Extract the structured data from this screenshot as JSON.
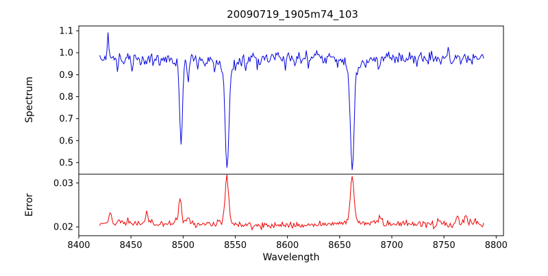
{
  "title": "20090719_1905m74_103",
  "axes": {
    "xlabel": "Wavelength",
    "ylabel_spectrum": "Spectrum",
    "ylabel_error": "Error"
  },
  "colors": {
    "spectrum_line": "#0000dd",
    "error_line": "#ee0000",
    "axis": "#000000",
    "background": "#ffffff"
  },
  "chart_data": {
    "type": "line",
    "title": "20090719_1905m74_103",
    "xlabel": "Wavelength",
    "x_range": [
      8400,
      8807
    ],
    "x_data_range": [
      8420,
      8788
    ],
    "x_step": 1,
    "x_ticks": [
      8400,
      8450,
      8500,
      8550,
      8600,
      8650,
      8700,
      8750,
      8800
    ],
    "grid": false,
    "legend": false,
    "noise_seed": 1337,
    "panels": [
      {
        "name": "spectrum",
        "ylabel": "Spectrum",
        "color": "#0000dd",
        "ylim": [
          0.447,
          1.122
        ],
        "y_ticks": [
          0.5,
          0.6,
          0.7,
          0.8,
          0.9,
          1.0,
          1.1
        ],
        "tick_decimals": 1,
        "continuum": 0.98,
        "noise_sigma": 0.013,
        "absorption_lines": [
          {
            "center": 8498,
            "depth": 0.4,
            "core_sigma": 1.3,
            "wing_scale": 3.0,
            "wing_frac": 0.15,
            "min_value": 0.58
          },
          {
            "center": 8542,
            "depth": 0.52,
            "core_sigma": 1.6,
            "wing_scale": 4.5,
            "wing_frac": 0.22,
            "min_value": 0.46
          },
          {
            "center": 8662,
            "depth": 0.52,
            "core_sigma": 1.6,
            "wing_scale": 4.5,
            "wing_frac": 0.22,
            "min_value": 0.46
          }
        ],
        "minor_dips": [
          {
            "center": 8437,
            "depth": 0.035,
            "sigma": 0.9
          },
          {
            "center": 8444,
            "depth": 0.03,
            "sigma": 0.8
          },
          {
            "center": 8451,
            "depth": 0.05,
            "sigma": 0.9
          },
          {
            "center": 8459,
            "depth": 0.03,
            "sigma": 0.8
          },
          {
            "center": 8464,
            "depth": 0.035,
            "sigma": 0.9
          },
          {
            "center": 8471,
            "depth": 0.03,
            "sigma": 0.8
          },
          {
            "center": 8478,
            "depth": 0.025,
            "sigma": 0.8
          },
          {
            "center": 8490,
            "depth": 0.03,
            "sigma": 0.8
          },
          {
            "center": 8505,
            "depth": 0.095,
            "sigma": 1.0
          },
          {
            "center": 8514,
            "depth": 0.04,
            "sigma": 0.9
          },
          {
            "center": 8521,
            "depth": 0.035,
            "sigma": 0.8
          },
          {
            "center": 8530,
            "depth": 0.045,
            "sigma": 0.9
          },
          {
            "center": 8560,
            "depth": 0.03,
            "sigma": 0.8
          },
          {
            "center": 8571,
            "depth": 0.025,
            "sigma": 0.8
          },
          {
            "center": 8583,
            "depth": 0.035,
            "sigma": 0.9
          },
          {
            "center": 8598,
            "depth": 0.045,
            "sigma": 0.9
          },
          {
            "center": 8607,
            "depth": 0.03,
            "sigma": 0.8
          },
          {
            "center": 8620,
            "depth": 0.035,
            "sigma": 0.8
          },
          {
            "center": 8634,
            "depth": 0.03,
            "sigma": 0.8
          },
          {
            "center": 8648,
            "depth": 0.035,
            "sigma": 0.9
          },
          {
            "center": 8674,
            "depth": 0.03,
            "sigma": 0.8
          },
          {
            "center": 8688,
            "depth": 0.05,
            "sigma": 0.9
          },
          {
            "center": 8699,
            "depth": 0.03,
            "sigma": 0.8
          },
          {
            "center": 8712,
            "depth": 0.035,
            "sigma": 0.8
          },
          {
            "center": 8724,
            "depth": 0.03,
            "sigma": 0.8
          },
          {
            "center": 8735,
            "depth": 0.035,
            "sigma": 0.9
          },
          {
            "center": 8747,
            "depth": 0.03,
            "sigma": 0.8
          },
          {
            "center": 8757,
            "depth": 0.04,
            "sigma": 0.9
          },
          {
            "center": 8766,
            "depth": 0.035,
            "sigma": 0.8
          },
          {
            "center": 8776,
            "depth": 0.03,
            "sigma": 0.8
          }
        ],
        "up_spikes": [
          {
            "center": 8428,
            "height": 0.1,
            "sigma": 0.6
          },
          {
            "center": 8618,
            "height": 0.045,
            "sigma": 0.6
          },
          {
            "center": 8754,
            "height": 0.05,
            "sigma": 0.6
          }
        ]
      },
      {
        "name": "error",
        "ylabel": "Error",
        "color": "#ee0000",
        "ylim": [
          0.018,
          0.032
        ],
        "y_ticks": [
          0.02,
          0.03
        ],
        "tick_decimals": 2,
        "baseline": 0.0205,
        "noise_sigma": 0.00035,
        "spikes": [
          {
            "center": 8430,
            "height": 0.003,
            "sigma": 1.0
          },
          {
            "center": 8447,
            "height": 0.0015,
            "sigma": 1.0
          },
          {
            "center": 8465,
            "height": 0.0027,
            "sigma": 1.0
          },
          {
            "center": 8497,
            "height": 0.006,
            "sigma": 1.2
          },
          {
            "center": 8505,
            "height": 0.0018,
            "sigma": 1.0
          },
          {
            "center": 8542,
            "height": 0.0105,
            "sigma": 1.6
          },
          {
            "center": 8662,
            "height": 0.0112,
            "sigma": 1.6
          },
          {
            "center": 8688,
            "height": 0.0016,
            "sigma": 1.0
          },
          {
            "center": 8745,
            "height": 0.0012,
            "sigma": 1.0
          },
          {
            "center": 8763,
            "height": 0.0022,
            "sigma": 1.0
          },
          {
            "center": 8771,
            "height": 0.0026,
            "sigma": 1.0
          },
          {
            "center": 8780,
            "height": 0.0014,
            "sigma": 1.0
          }
        ]
      }
    ]
  }
}
